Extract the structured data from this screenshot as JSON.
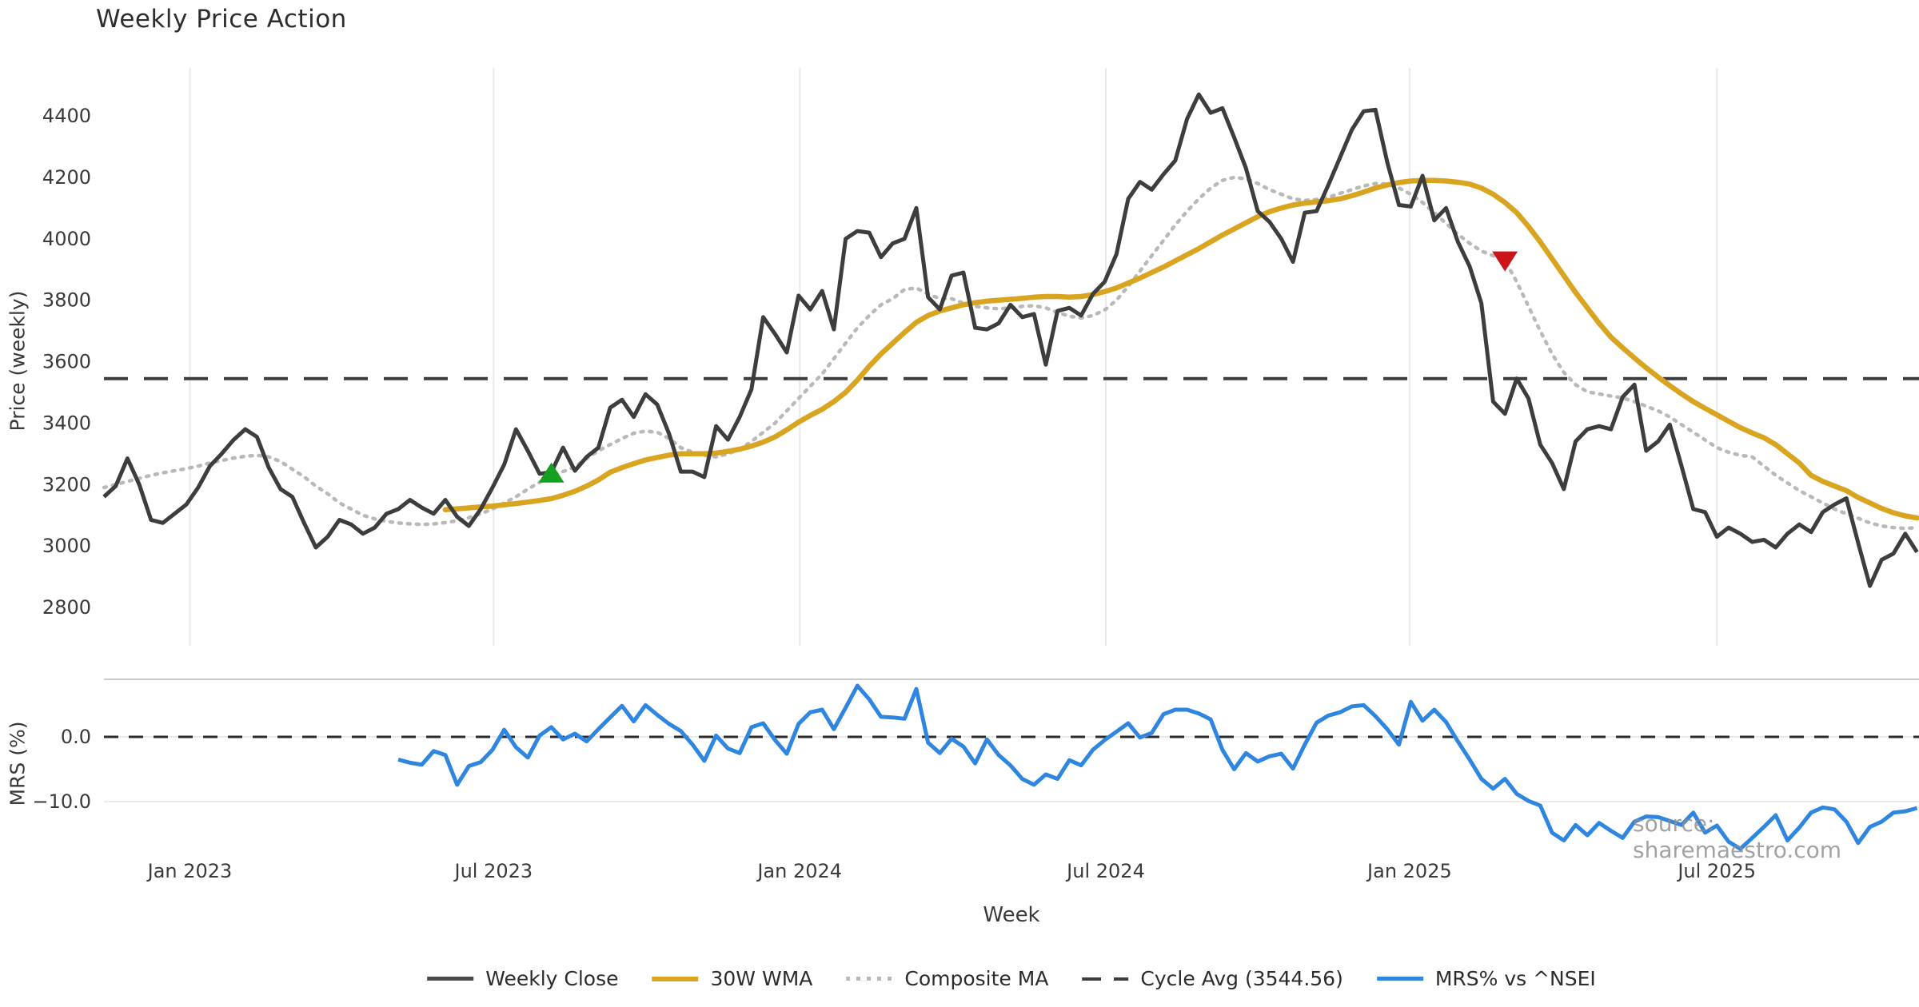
{
  "page": {
    "title": "Weekly Price Action",
    "watermark": "source: sharemaestro.com"
  },
  "chart_data": {
    "type": "line",
    "title": "Weekly Price Action",
    "weeks": 155,
    "cycle_avg": 3544.56,
    "cycle_avg_label": "Cycle Avg (3544.56)",
    "x_axis": {
      "label": "Week",
      "ticks": [
        {
          "label": "Jan 2023",
          "week": 7.3
        },
        {
          "label": "Jul 2023",
          "week": 33.1
        },
        {
          "label": "Jan 2024",
          "week": 59.1
        },
        {
          "label": "Jul 2024",
          "week": 85.1
        },
        {
          "label": "Jan 2025",
          "week": 110.9
        },
        {
          "label": "Jul 2025",
          "week": 137.0
        }
      ]
    },
    "price_axis": {
      "label": "Price (weekly)",
      "ylim": [
        2675,
        4556
      ],
      "ticks": [
        {
          "label": "4400",
          "value": 4400
        },
        {
          "label": "4200",
          "value": 4200
        },
        {
          "label": "4000",
          "value": 4000
        },
        {
          "label": "3800",
          "value": 3800
        },
        {
          "label": "3600",
          "value": 3600
        },
        {
          "label": "3400",
          "value": 3400
        },
        {
          "label": "3200",
          "value": 3200
        },
        {
          "label": "3000",
          "value": 3000
        },
        {
          "label": "2800",
          "value": 2800
        }
      ]
    },
    "mrs_axis": {
      "label": "MRS (%)",
      "ylim": [
        -17.8,
        8.9
      ],
      "ticks": [
        {
          "label": "0.0",
          "value": 0
        },
        {
          "label": "−10.0",
          "value": -10
        }
      ]
    },
    "series": [
      {
        "name": "Weekly Close",
        "color": "#3d3d3d",
        "style": "solid",
        "panel": "price",
        "values": [
          3160,
          3195,
          3285,
          3200,
          3085,
          3075,
          3105,
          3135,
          3190,
          3260,
          3300,
          3345,
          3380,
          3355,
          3255,
          3185,
          3160,
          3075,
          2995,
          3030,
          3085,
          3070,
          3040,
          3060,
          3105,
          3120,
          3150,
          3125,
          3105,
          3150,
          3095,
          3065,
          3120,
          3190,
          3265,
          3380,
          3310,
          3235,
          3240,
          3320,
          3245,
          3290,
          3320,
          3450,
          3476,
          3420,
          3494,
          3460,
          3365,
          3242,
          3242,
          3224,
          3390,
          3346,
          3420,
          3510,
          3745,
          3690,
          3630,
          3815,
          3770,
          3830,
          3705,
          4000,
          4025,
          4020,
          3940,
          3985,
          4000,
          4100,
          3810,
          3770,
          3880,
          3890,
          3710,
          3705,
          3725,
          3785,
          3745,
          3755,
          3590,
          3765,
          3775,
          3750,
          3820,
          3860,
          3950,
          4130,
          4185,
          4160,
          4210,
          4255,
          4390,
          4470,
          4410,
          4425,
          4330,
          4230,
          4090,
          4055,
          4000,
          3925,
          4085,
          4090,
          4175,
          4265,
          4355,
          4415,
          4420,
          4250,
          4110,
          4105,
          4205,
          4060,
          4100,
          3990,
          3910,
          3790,
          3470,
          3430,
          3545,
          3480,
          3330,
          3270,
          3185,
          3340,
          3380,
          3390,
          3380,
          3485,
          3525,
          3310,
          3340,
          3395,
          3260,
          3120,
          3110,
          3030,
          3060,
          3040,
          3013,
          3020,
          2995,
          3040,
          3070,
          3045,
          3110,
          3135,
          3155,
          3010,
          2870,
          2955,
          2975,
          3040,
          2980
        ]
      },
      {
        "name": "30W WMA",
        "color": "#d9a521",
        "style": "solid",
        "panel": "price",
        "values": [
          null,
          null,
          null,
          null,
          null,
          null,
          null,
          null,
          null,
          null,
          null,
          null,
          null,
          null,
          null,
          null,
          null,
          null,
          null,
          null,
          null,
          null,
          null,
          null,
          null,
          null,
          null,
          null,
          null,
          3118,
          3121,
          3124,
          3127,
          3130,
          3134,
          3138,
          3143,
          3148,
          3154,
          3165,
          3178,
          3195,
          3215,
          3240,
          3255,
          3268,
          3280,
          3288,
          3296,
          3300,
          3300,
          3300,
          3302,
          3308,
          3315,
          3325,
          3338,
          3355,
          3378,
          3403,
          3425,
          3445,
          3470,
          3500,
          3540,
          3585,
          3625,
          3660,
          3695,
          3728,
          3750,
          3765,
          3775,
          3785,
          3792,
          3797,
          3800,
          3803,
          3806,
          3810,
          3812,
          3812,
          3810,
          3812,
          3818,
          3828,
          3840,
          3856,
          3872,
          3890,
          3908,
          3928,
          3948,
          3968,
          3990,
          4012,
          4032,
          4052,
          4072,
          4088,
          4100,
          4110,
          4116,
          4120,
          4124,
          4130,
          4140,
          4152,
          4165,
          4175,
          4183,
          4188,
          4190,
          4190,
          4188,
          4184,
          4178,
          4165,
          4145,
          4118,
          4085,
          4040,
          3990,
          3935,
          3880,
          3825,
          3775,
          3725,
          3680,
          3645,
          3612,
          3580,
          3550,
          3522,
          3495,
          3470,
          3448,
          3427,
          3406,
          3385,
          3368,
          3352,
          3330,
          3300,
          3270,
          3230,
          3210,
          3195,
          3180,
          3158,
          3140,
          3122,
          3108,
          3098,
          3091
        ]
      },
      {
        "name": "Composite MA",
        "color": "#b9b9b9",
        "style": "dotted",
        "panel": "price",
        "values": [
          3190,
          3200,
          3210,
          3220,
          3230,
          3238,
          3245,
          3252,
          3260,
          3270,
          3278,
          3286,
          3292,
          3295,
          3290,
          3275,
          3250,
          3225,
          3195,
          3170,
          3140,
          3120,
          3100,
          3088,
          3080,
          3075,
          3072,
          3070,
          3072,
          3076,
          3082,
          3092,
          3105,
          3120,
          3140,
          3160,
          3185,
          3207,
          3228,
          3242,
          3258,
          3285,
          3310,
          3330,
          3350,
          3367,
          3374,
          3370,
          3350,
          3320,
          3305,
          3295,
          3290,
          3300,
          3315,
          3340,
          3370,
          3400,
          3440,
          3480,
          3520,
          3560,
          3610,
          3660,
          3710,
          3750,
          3785,
          3805,
          3835,
          3840,
          3820,
          3805,
          3805,
          3790,
          3780,
          3775,
          3772,
          3775,
          3780,
          3782,
          3775,
          3760,
          3748,
          3742,
          3750,
          3768,
          3800,
          3845,
          3895,
          3945,
          3995,
          4045,
          4090,
          4130,
          4165,
          4190,
          4200,
          4195,
          4180,
          4160,
          4145,
          4130,
          4125,
          4128,
          4135,
          4148,
          4160,
          4172,
          4180,
          4178,
          4165,
          4145,
          4118,
          4085,
          4050,
          4015,
          3985,
          3960,
          3945,
          3930,
          3860,
          3780,
          3700,
          3625,
          3565,
          3525,
          3502,
          3495,
          3488,
          3482,
          3470,
          3455,
          3440,
          3420,
          3395,
          3370,
          3345,
          3320,
          3305,
          3295,
          3290,
          3260,
          3230,
          3205,
          3180,
          3160,
          3140,
          3120,
          3105,
          3090,
          3075,
          3065,
          3060,
          3057,
          3060
        ]
      },
      {
        "name": "MRS% vs ^NSEI",
        "color": "#2e86e0",
        "style": "solid",
        "panel": "mrs",
        "values": [
          null,
          null,
          null,
          null,
          null,
          null,
          null,
          null,
          null,
          null,
          null,
          null,
          null,
          null,
          null,
          null,
          null,
          null,
          null,
          null,
          null,
          null,
          null,
          null,
          null,
          -3.5,
          -4.0,
          -4.3,
          -2.2,
          -2.8,
          -7.4,
          -4.5,
          -3.9,
          -2.0,
          1.1,
          -1.6,
          -3.2,
          0.2,
          1.5,
          -0.4,
          0.5,
          -0.7,
          1.2,
          3.0,
          4.8,
          2.4,
          4.9,
          3.4,
          2.0,
          0.9,
          -1.2,
          -3.7,
          0.2,
          -1.8,
          -2.5,
          1.5,
          2.1,
          -0.5,
          -2.6,
          2.0,
          3.8,
          4.2,
          1.2,
          4.5,
          7.9,
          5.8,
          3.1,
          3.0,
          2.8,
          7.4,
          -0.9,
          -2.5,
          -0.3,
          -1.5,
          -4.1,
          -0.4,
          -2.8,
          -4.4,
          -6.5,
          -7.4,
          -5.8,
          -6.5,
          -3.6,
          -4.4,
          -2.0,
          -0.5,
          0.8,
          2.1,
          -0.1,
          0.6,
          3.5,
          4.2,
          4.2,
          3.6,
          2.7,
          -2.0,
          -5.0,
          -2.5,
          -3.8,
          -3.0,
          -2.6,
          -4.9,
          -1.2,
          2.2,
          3.3,
          3.8,
          4.7,
          4.9,
          3.2,
          1.2,
          -1.2,
          5.4,
          2.5,
          4.2,
          2.3,
          -0.7,
          -3.5,
          -6.5,
          -8.0,
          -6.5,
          -8.8,
          -9.9,
          -10.6,
          -14.8,
          -16.0,
          -13.6,
          -15.2,
          -13.3,
          -14.5,
          -15.6,
          -13.1,
          -12.3,
          -12.4,
          -13.0,
          -13.6,
          -11.7,
          -14.8,
          -13.7,
          -16.2,
          -17.3,
          -15.6,
          -13.9,
          -12.1,
          -16.0,
          -14.0,
          -11.7,
          -10.9,
          -11.2,
          -13.1,
          -16.4,
          -13.9,
          -13.1,
          -11.7,
          -11.5,
          -11.0
        ]
      }
    ],
    "markers": [
      {
        "type": "buy",
        "shape": "triangle-up",
        "color": "#14a021",
        "week": 38,
        "value": 3235
      },
      {
        "type": "sell",
        "shape": "triangle-down",
        "color": "#cc1518",
        "week": 119,
        "value": 3930
      }
    ]
  }
}
